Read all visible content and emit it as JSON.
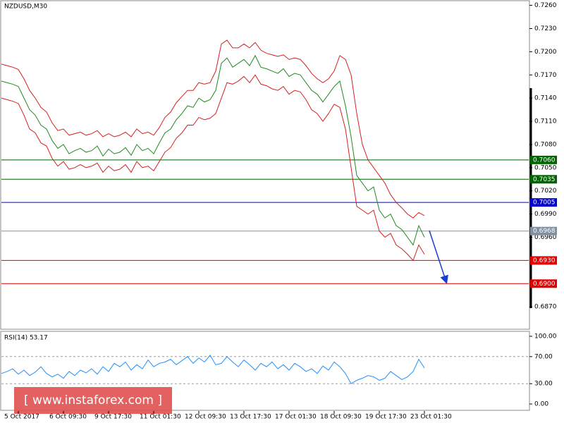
{
  "watermark": "[ www.instaforex.com ]",
  "chart_data": [
    {
      "type": "line",
      "title": "NZDUSD,M30",
      "categories": [
        null,
        null,
        null,
        "5 Oct 2017",
        null,
        null,
        null,
        null,
        null,
        null,
        null,
        "6 Oct 09:30",
        null,
        null,
        null,
        null,
        null,
        null,
        null,
        "9 Oct 17:30",
        null,
        null,
        null,
        null,
        null,
        null,
        null,
        "11 Oct 01:30",
        null,
        null,
        null,
        null,
        null,
        null,
        null,
        "12 Oct 09:30",
        null,
        null,
        null,
        null,
        null,
        null,
        null,
        "13 Oct 17:30",
        null,
        null,
        null,
        null,
        null,
        null,
        null,
        "17 Oct 01:30",
        null,
        null,
        null,
        null,
        null,
        null,
        null,
        "18 Oct 09:30",
        null,
        null,
        null,
        null,
        null,
        null,
        null,
        "19 Oct 17:30",
        null,
        null,
        null,
        null,
        null,
        null,
        null,
        "23 Oct 01:30"
      ],
      "series": [
        {
          "color": "#d62020",
          "values": [
            0.7184,
            0.7182,
            0.718,
            0.7177,
            0.7165,
            0.715,
            0.714,
            0.7128,
            0.7122,
            0.7108,
            0.7098,
            0.71,
            0.7092,
            0.7094,
            0.7096,
            0.7092,
            0.7094,
            0.7098,
            0.709,
            0.7094,
            0.709,
            0.7092,
            0.7096,
            0.709,
            0.71,
            0.7094,
            0.7096,
            0.7092,
            0.7102,
            0.7115,
            0.7122,
            0.7134,
            0.7142,
            0.715,
            0.715,
            0.716,
            0.7158,
            0.716,
            0.7175,
            0.721,
            0.7215,
            0.7205,
            0.7205,
            0.721,
            0.7205,
            0.7212,
            0.7202,
            0.7198,
            0.7196,
            0.7194,
            0.7196,
            0.719,
            0.7192,
            0.719,
            0.7182,
            0.7172,
            0.7165,
            0.716,
            0.7165,
            0.7175,
            0.7195,
            0.719,
            0.717,
            0.712,
            0.708,
            0.706,
            0.705,
            0.704,
            0.703,
            0.7015,
            0.7005,
            0.6998,
            0.699,
            0.6985,
            0.6992,
            0.6988
          ]
        },
        {
          "color": "#d62020",
          "values": [
            0.714,
            0.7138,
            0.7136,
            0.7133,
            0.7118,
            0.71,
            0.7095,
            0.7082,
            0.7078,
            0.7062,
            0.7052,
            0.7058,
            0.7048,
            0.705,
            0.7054,
            0.705,
            0.7052,
            0.7056,
            0.7044,
            0.7052,
            0.7046,
            0.7048,
            0.7054,
            0.7044,
            0.7058,
            0.705,
            0.7052,
            0.7046,
            0.7058,
            0.707,
            0.7076,
            0.7088,
            0.7095,
            0.7105,
            0.7105,
            0.7115,
            0.7112,
            0.7114,
            0.712,
            0.714,
            0.716,
            0.7158,
            0.7162,
            0.7168,
            0.716,
            0.717,
            0.7158,
            0.7156,
            0.7152,
            0.715,
            0.7155,
            0.7145,
            0.715,
            0.7148,
            0.7138,
            0.7125,
            0.712,
            0.711,
            0.712,
            0.7132,
            0.7128,
            0.71,
            0.705,
            0.7,
            0.6995,
            0.699,
            0.6995,
            0.6968,
            0.696,
            0.6965,
            0.695,
            0.6945,
            0.6938,
            0.693,
            0.695,
            0.6938
          ]
        },
        {
          "color": "#1f8a1f",
          "values": [
            0.7162,
            0.716,
            0.7158,
            0.7155,
            0.714,
            0.7125,
            0.7118,
            0.7105,
            0.71,
            0.7085,
            0.7075,
            0.708,
            0.7068,
            0.7072,
            0.7075,
            0.707,
            0.7072,
            0.7078,
            0.7065,
            0.7074,
            0.7068,
            0.707,
            0.7076,
            0.7066,
            0.708,
            0.7072,
            0.7075,
            0.7068,
            0.7082,
            0.7095,
            0.71,
            0.7112,
            0.712,
            0.713,
            0.7128,
            0.714,
            0.7135,
            0.7138,
            0.715,
            0.7185,
            0.7192,
            0.718,
            0.7185,
            0.719,
            0.7182,
            0.7195,
            0.718,
            0.7178,
            0.7175,
            0.7172,
            0.7178,
            0.7168,
            0.7172,
            0.717,
            0.716,
            0.715,
            0.7145,
            0.7135,
            0.7145,
            0.7155,
            0.7162,
            0.713,
            0.709,
            0.704,
            0.703,
            0.702,
            0.7025,
            0.6995,
            0.6985,
            0.699,
            0.6975,
            0.697,
            0.696,
            0.695,
            0.6975,
            0.696
          ]
        }
      ],
      "ylim": [
        0.6841,
        0.7266
      ],
      "yticks": [
        {
          "value": 0.726,
          "label": "0.7260"
        },
        {
          "value": 0.723,
          "label": "0.7230"
        },
        {
          "value": 0.72,
          "label": "0.7200"
        },
        {
          "value": 0.717,
          "label": "0.7170"
        },
        {
          "value": 0.714,
          "label": "0.7140"
        },
        {
          "value": 0.711,
          "label": "0.7110"
        },
        {
          "value": 0.708,
          "label": "0.7080"
        },
        {
          "value": 0.705,
          "label": "0.7050"
        },
        {
          "value": 0.702,
          "label": "0.7020"
        },
        {
          "value": 0.699,
          "label": "0.6990"
        },
        {
          "value": 0.696,
          "label": "0.6960"
        },
        {
          "value": 0.687,
          "label": "0.6870"
        }
      ],
      "levels": [
        {
          "value": 0.706,
          "label": "0.7060",
          "color": "#006400"
        },
        {
          "value": 0.7035,
          "label": "0.7035",
          "color": "#006400"
        },
        {
          "value": 0.7005,
          "label": "0.7005",
          "color": "#0000cd"
        },
        {
          "value": 0.6968,
          "label": "0.6968",
          "color": "#8090a0"
        },
        {
          "value": 0.693,
          "label": "0.6930",
          "color": "#e00000"
        },
        {
          "value": 0.69,
          "label": "0.6900",
          "color": "#e00000"
        }
      ]
    },
    {
      "type": "line",
      "title": "RSI(14) 53.17",
      "series": [
        {
          "color": "#1e90ff",
          "values": [
            45,
            48,
            52,
            44,
            50,
            42,
            47,
            55,
            45,
            40,
            44,
            38,
            48,
            42,
            50,
            46,
            52,
            44,
            55,
            48,
            60,
            55,
            62,
            50,
            58,
            52,
            65,
            55,
            60,
            62,
            66,
            58,
            64,
            70,
            60,
            68,
            62,
            72,
            58,
            60,
            70,
            62,
            55,
            65,
            58,
            50,
            60,
            55,
            62,
            52,
            58,
            50,
            60,
            55,
            48,
            52,
            45,
            56,
            50,
            62,
            55,
            45,
            30,
            35,
            38,
            42,
            40,
            35,
            38,
            48,
            42,
            36,
            40,
            48,
            66,
            53.17
          ]
        }
      ],
      "ylim": [
        -10.4,
        107.3
      ],
      "yticks": [
        {
          "value": 100,
          "label": "100.00"
        },
        {
          "value": 70,
          "label": "70.00"
        },
        {
          "value": 30,
          "label": "30.00"
        },
        {
          "value": 0,
          "label": "0.00"
        }
      ],
      "levels": [
        70,
        30
      ]
    }
  ]
}
